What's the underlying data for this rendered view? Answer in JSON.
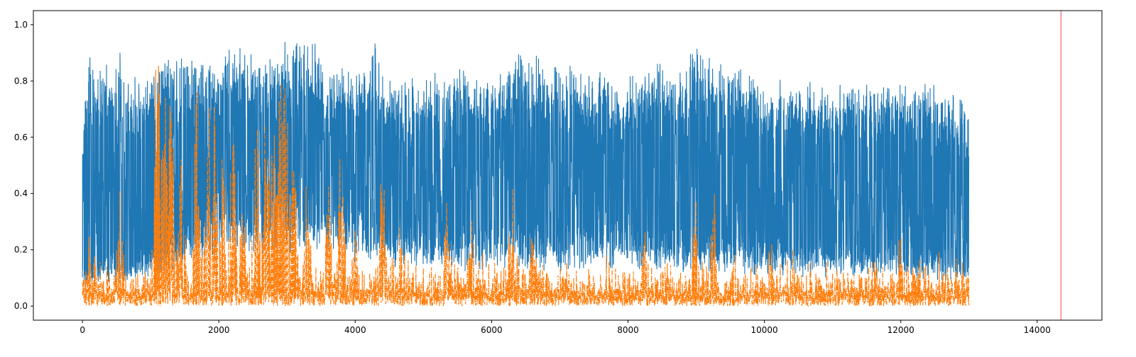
{
  "chart_data": {
    "type": "line",
    "title": "",
    "xlabel": "",
    "ylabel": "",
    "xlim": [
      -720,
      14950
    ],
    "ylim": [
      -0.05,
      1.05
    ],
    "x_ticks": [
      0,
      2000,
      4000,
      6000,
      8000,
      10000,
      12000,
      14000
    ],
    "x_tick_labels": [
      "0",
      "2000",
      "4000",
      "6000",
      "8000",
      "10000",
      "12000",
      "14000"
    ],
    "y_ticks": [
      0.0,
      0.2,
      0.4,
      0.6,
      0.8,
      1.0
    ],
    "y_tick_labels": [
      "0.0",
      "0.2",
      "0.4",
      "0.6",
      "0.8",
      "1.0"
    ],
    "grid": false,
    "legend": "none",
    "n_points": 13000,
    "vertical_line": {
      "x": 14350,
      "color": "#f08080"
    },
    "series": [
      {
        "color": "#1f77b4",
        "style": "solid",
        "period_points": 55,
        "min_envelope": {
          "x": [
            0,
            200,
            600,
            900,
            1100,
            1400,
            1800,
            2200,
            2600,
            3000,
            3500,
            4000,
            5000,
            6000,
            7000,
            8000,
            9000,
            10000,
            11000,
            12000,
            13000
          ],
          "y": [
            0.1,
            0.12,
            0.14,
            0.16,
            0.14,
            0.22,
            0.28,
            0.3,
            0.32,
            0.33,
            0.3,
            0.26,
            0.22,
            0.22,
            0.21,
            0.22,
            0.2,
            0.18,
            0.17,
            0.16,
            0.13
          ]
        },
        "peaks": {
          "x": [
            0,
            60,
            130,
            260,
            540,
            700,
            1000,
            1200,
            1400,
            1700,
            1850,
            2000,
            2200,
            2450,
            2750,
            3000,
            3300,
            3600,
            4000,
            4300,
            4500,
            5000,
            5500,
            6000,
            6400,
            7000,
            7500,
            8000,
            8300,
            8700,
            9000,
            9300,
            9600,
            10000,
            10500,
            11000,
            11500,
            12000,
            12500,
            13000
          ],
          "y": [
            0.6,
            0.88,
            0.89,
            0.86,
            0.91,
            0.81,
            0.85,
            0.93,
            0.89,
            0.92,
            0.92,
            0.89,
            0.95,
            0.91,
            0.92,
            0.95,
            1.0,
            0.86,
            0.85,
            0.94,
            0.81,
            0.82,
            0.86,
            0.82,
            0.93,
            0.86,
            0.85,
            0.82,
            0.89,
            0.84,
            0.94,
            0.86,
            0.88,
            0.82,
            0.8,
            0.8,
            0.84,
            0.8,
            0.82,
            0.74
          ]
        }
      },
      {
        "color": "#ff7f0e",
        "style": "dashdot",
        "baseline": 0.03,
        "peaks": {
          "x": [
            130,
            560,
            1100,
            1200,
            1300,
            1450,
            1680,
            1850,
            1930,
            2050,
            2200,
            2350,
            2550,
            2700,
            2800,
            2900,
            2980,
            3100,
            3300,
            3600,
            3800,
            4000,
            4400,
            4650,
            5350,
            5700,
            6300,
            6600,
            8250,
            9000,
            9250,
            9600,
            10100,
            11600,
            12000,
            12800
          ],
          "y": [
            0.38,
            0.5,
            1.0,
            0.82,
            0.83,
            0.55,
            0.81,
            0.74,
            0.72,
            0.57,
            0.65,
            0.38,
            0.67,
            0.8,
            0.69,
            0.84,
            0.98,
            0.6,
            0.48,
            0.49,
            0.6,
            0.35,
            0.52,
            0.28,
            0.43,
            0.33,
            0.48,
            0.37,
            0.31,
            0.44,
            0.45,
            0.28,
            0.25,
            0.29,
            0.3,
            0.23
          ]
        }
      }
    ]
  }
}
